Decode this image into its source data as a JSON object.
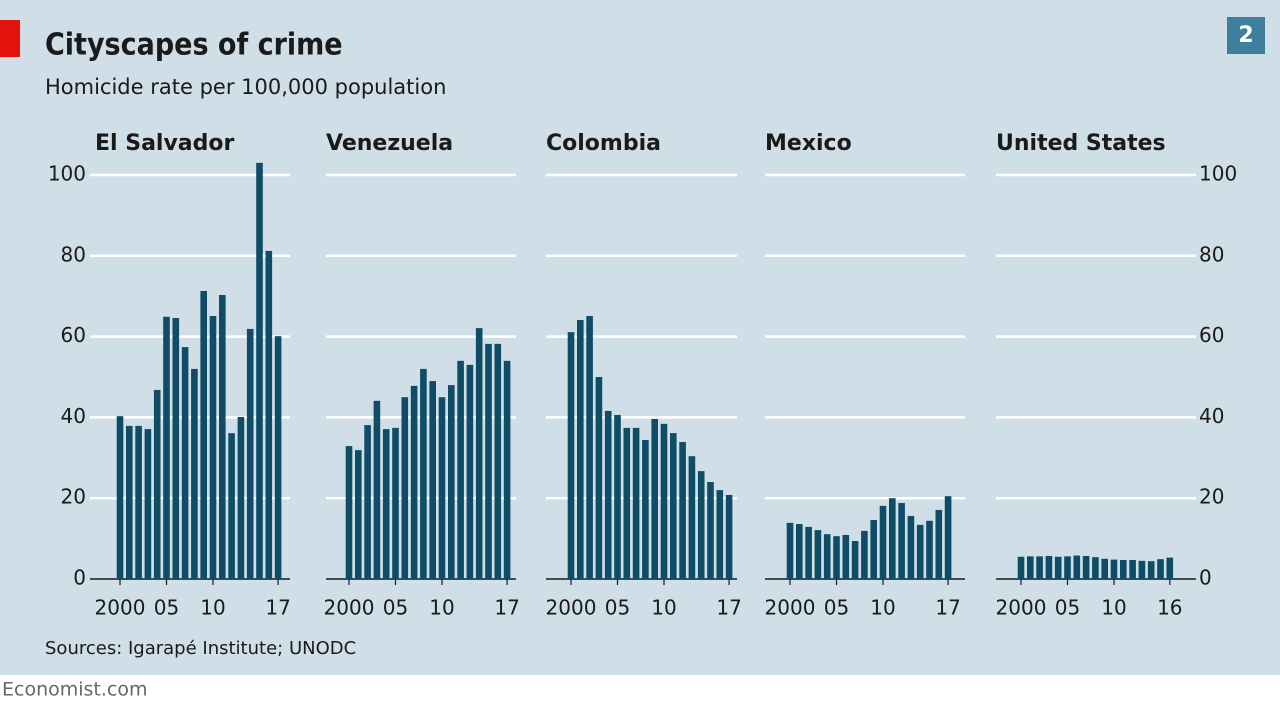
{
  "title": "Cityscapes of crime",
  "subtitle": "Homicide rate per 100,000 population",
  "source": "Sources: Igarapé Institute; UNODC",
  "footer": "Economist.com",
  "badge": "2",
  "chart_data": [
    {
      "type": "bar",
      "title": "El Salvador",
      "color": "#0f4c65",
      "categories": [
        "2000",
        null,
        null,
        null,
        null,
        "05",
        null,
        null,
        null,
        null,
        "10",
        null,
        null,
        null,
        null,
        null,
        null,
        "17"
      ],
      "values": [
        40.3,
        37.9,
        37.9,
        37.1,
        46.8,
        64.9,
        64.6,
        57.4,
        52,
        71.3,
        65.1,
        70.3,
        36.1,
        40.1,
        61.9,
        103,
        81.2,
        60.1
      ],
      "ylim": [
        0,
        100
      ],
      "yticks": [
        0,
        20,
        40,
        60,
        80,
        100
      ],
      "grid": true
    },
    {
      "type": "bar",
      "title": "Venezuela",
      "color": "#0f4c65",
      "categories": [
        "2000",
        null,
        null,
        null,
        null,
        "05",
        null,
        null,
        null,
        null,
        "10",
        null,
        null,
        null,
        null,
        null,
        null,
        "17"
      ],
      "values": [
        32.9,
        31.9,
        38.1,
        44.1,
        37.1,
        37.4,
        45,
        47.8,
        52,
        49,
        45,
        48,
        54,
        53,
        62.1,
        58.2,
        58.2,
        54
      ],
      "ylim": [
        0,
        100
      ],
      "yticks": [
        0,
        20,
        40,
        60,
        80,
        100
      ],
      "grid": true
    },
    {
      "type": "bar",
      "title": "Colombia",
      "color": "#0f4c65",
      "categories": [
        "2000",
        null,
        null,
        null,
        null,
        "05",
        null,
        null,
        null,
        null,
        "10",
        null,
        null,
        null,
        null,
        null,
        null,
        "17"
      ],
      "values": [
        61.1,
        64.1,
        65.1,
        50,
        41.6,
        40.6,
        37.4,
        37.4,
        34.4,
        39.6,
        38.4,
        36.1,
        33.9,
        30.4,
        26.7,
        24,
        22,
        20.8
      ],
      "ylim": [
        0,
        100
      ],
      "yticks": [
        0,
        20,
        40,
        60,
        80,
        100
      ],
      "grid": true
    },
    {
      "type": "bar",
      "title": "Mexico",
      "color": "#0f4c65",
      "categories": [
        "2000",
        null,
        null,
        null,
        null,
        "05",
        null,
        null,
        null,
        null,
        "10",
        null,
        null,
        null,
        null,
        null,
        null,
        "17"
      ],
      "values": [
        13.9,
        13.6,
        12.9,
        12.1,
        11.1,
        10.6,
        10.9,
        9.4,
        11.9,
        14.6,
        18.1,
        20,
        18.8,
        15.6,
        13.4,
        14.4,
        17.1,
        20.5
      ],
      "ylim": [
        0,
        100
      ],
      "yticks": [
        0,
        20,
        40,
        60,
        80,
        100
      ],
      "grid": true
    },
    {
      "type": "bar",
      "title": "United States",
      "color": "#0f4c65",
      "categories": [
        "2000",
        null,
        null,
        null,
        null,
        "05",
        null,
        null,
        null,
        null,
        "10",
        null,
        null,
        null,
        null,
        null,
        "16"
      ],
      "values": [
        5.5,
        5.6,
        5.6,
        5.7,
        5.5,
        5.6,
        5.8,
        5.7,
        5.4,
        5.0,
        4.8,
        4.7,
        4.7,
        4.5,
        4.4,
        4.9,
        5.3
      ],
      "ylim": [
        0,
        100
      ],
      "yticks": [
        0,
        20,
        40,
        60,
        80,
        100
      ],
      "grid": true
    }
  ]
}
